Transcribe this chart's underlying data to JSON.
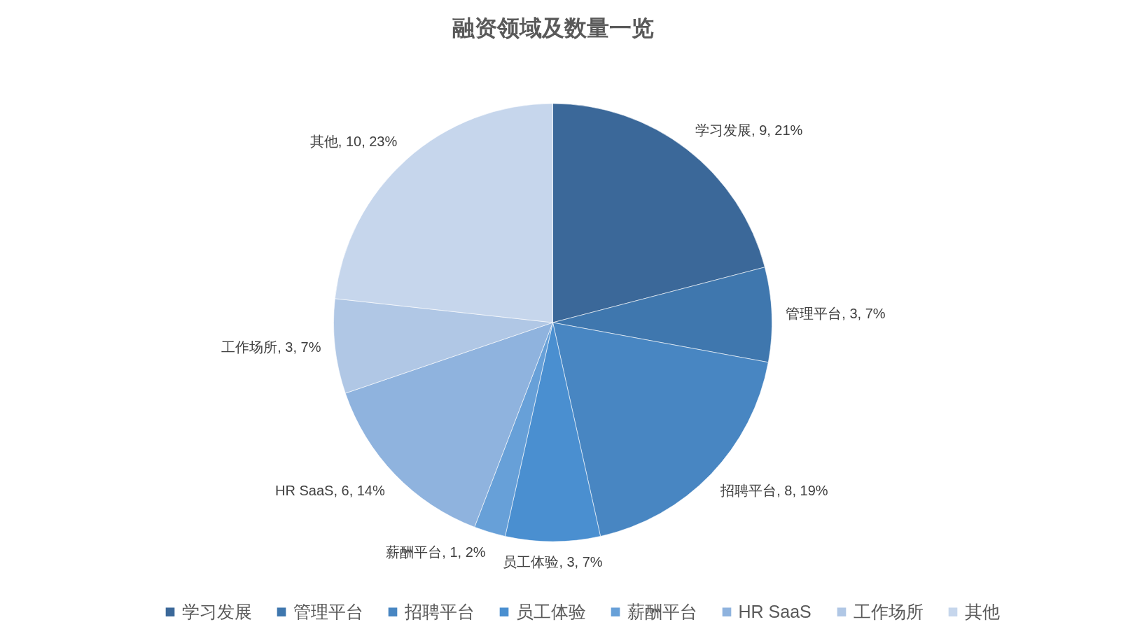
{
  "chart_data": {
    "type": "pie",
    "title": "融资领域及数量一览",
    "categories": [
      "学习发展",
      "管理平台",
      "招聘平台",
      "员工体验",
      "薪酬平台",
      "HR SaaS",
      "工作场所",
      "其他"
    ],
    "values": [
      9,
      3,
      8,
      3,
      1,
      6,
      3,
      10
    ],
    "colors": [
      "#3b6899",
      "#3f77ae",
      "#4886c2",
      "#4a8fd0",
      "#67a0d8",
      "#8fb3de",
      "#b0c7e5",
      "#c6d6ec"
    ],
    "value_labels": [
      "学习发展, 9, 21%",
      "管理平台, 3, 7%",
      "招聘平台, 8, 19%",
      "员工体验, 3, 7%",
      "薪酬平台, 1, 2%",
      "HR SaaS, 6, 14%",
      "工作场所, 3, 7%",
      "其他, 10, 23%"
    ],
    "legend": "bottom"
  }
}
